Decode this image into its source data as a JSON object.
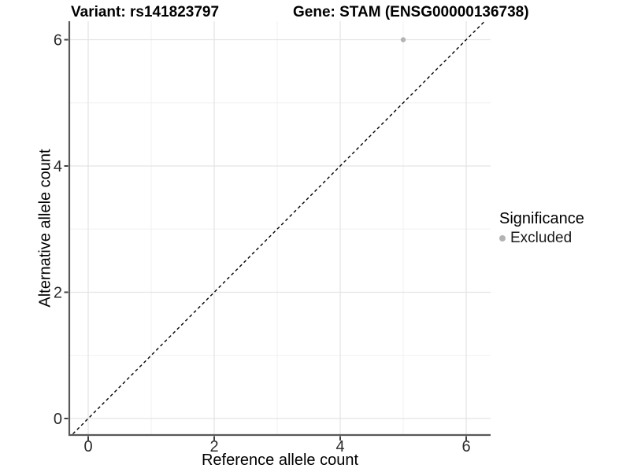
{
  "chart_data": {
    "type": "scatter",
    "title_left": "Variant: rs141823797",
    "title_right": "Gene: STAM (ENSG00000136738)",
    "xlabel": "Reference allele count",
    "ylabel": "Alternative allele count",
    "xlim": [
      -0.31,
      6.39
    ],
    "ylim": [
      -0.26,
      6.3
    ],
    "x_ticks": [
      0,
      2,
      4,
      6
    ],
    "y_ticks": [
      0,
      2,
      4,
      6
    ],
    "minor_x": [
      1,
      3,
      5
    ],
    "minor_y": [
      1,
      3,
      5
    ],
    "grid": "major+minor",
    "legend": {
      "title": "Significance",
      "position": "right",
      "entries": [
        {
          "label": "Excluded",
          "color": "#b3b3b3"
        }
      ]
    },
    "series": [
      {
        "name": "Excluded",
        "color": "#b3b3b3",
        "marker_radius_px": 3.2,
        "points": [
          [
            5,
            6
          ]
        ]
      }
    ],
    "reference_line": {
      "type": "identity",
      "slope": 1,
      "intercept": 0,
      "style": "dashed",
      "color": "#000000"
    }
  },
  "colors": {
    "background": "#ffffff",
    "axis_line": "#585858",
    "tick": "#404040",
    "tick_label": "#2b2b2b",
    "grid_major": "#e3e3e3",
    "grid_minor": "#f0f0f0",
    "text": "#000000"
  }
}
